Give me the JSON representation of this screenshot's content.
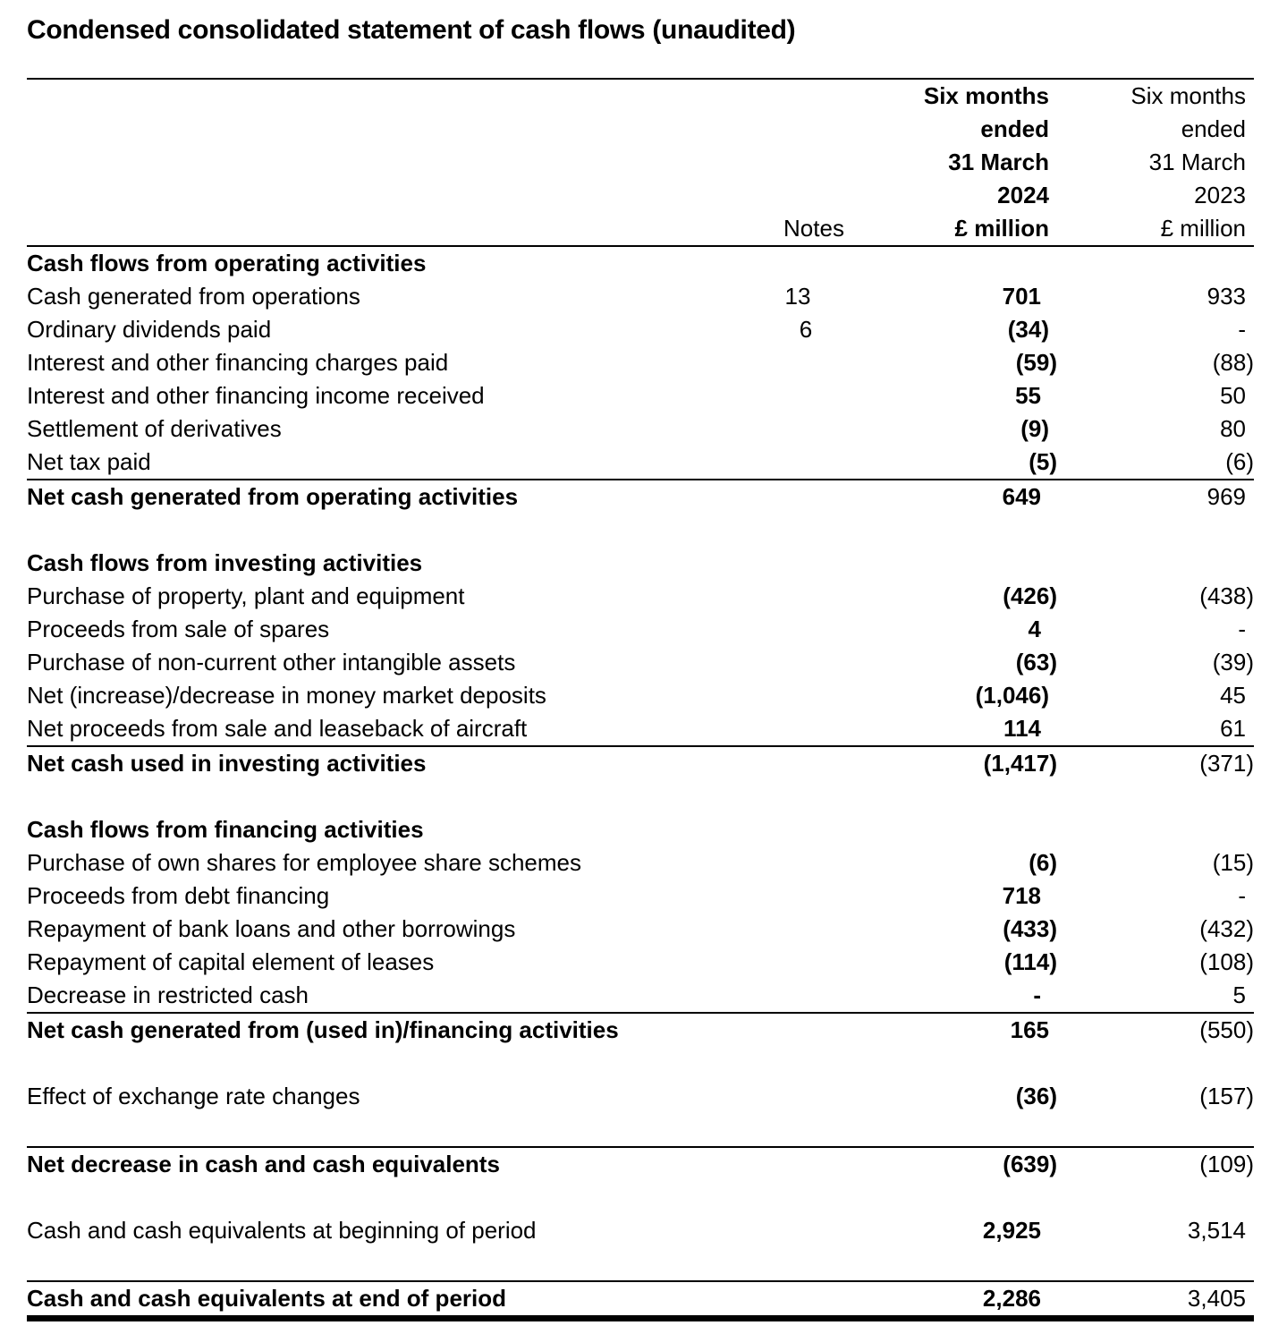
{
  "title": "Condensed consolidated statement of cash flows (unaudited)",
  "header": {
    "notes_label": "Notes",
    "col_2024_lines": [
      "Six months",
      "ended",
      "31 March",
      "2024",
      "£ million"
    ],
    "col_2023_lines": [
      "Six months",
      "ended",
      "31 March",
      "2023",
      "£ million"
    ]
  },
  "rows": [
    {
      "type": "section",
      "label": "Cash flows from operating activities"
    },
    {
      "type": "item",
      "label": "Cash generated from operations",
      "note": "13",
      "v2024": "701",
      "v2023": "933"
    },
    {
      "type": "item",
      "label": "Ordinary dividends paid",
      "note": "6",
      "v2024": "(34)",
      "v2023": "-"
    },
    {
      "type": "item",
      "label": "Interest and other financing charges paid",
      "v2024": "(59)",
      "v2023": "(88)"
    },
    {
      "type": "item",
      "label": "Interest and other financing income received",
      "v2024": "55",
      "v2023": "50"
    },
    {
      "type": "item",
      "label": "Settlement of derivatives",
      "v2024": "(9)",
      "v2023": "80"
    },
    {
      "type": "item",
      "label": "Net tax paid",
      "v2024": "(5)",
      "v2023": "(6)"
    },
    {
      "type": "rule"
    },
    {
      "type": "total",
      "label": "Net cash generated from operating activities",
      "v2024": "649",
      "v2023": "969"
    },
    {
      "type": "spacer"
    },
    {
      "type": "section",
      "label": "Cash flows from investing activities"
    },
    {
      "type": "item",
      "label": "Purchase of property, plant and equipment",
      "v2024": "(426)",
      "v2023": "(438)"
    },
    {
      "type": "item",
      "label": "Proceeds from sale of spares",
      "v2024": "4",
      "v2023": "-"
    },
    {
      "type": "item",
      "label": "Purchase of non-current other intangible assets",
      "v2024": "(63)",
      "v2023": "(39)"
    },
    {
      "type": "item",
      "label": "Net (increase)/decrease in money market deposits",
      "v2024": "(1,046)",
      "v2023": "45"
    },
    {
      "type": "item",
      "label": "Net proceeds from sale and leaseback of aircraft",
      "v2024": "114",
      "v2023": "61"
    },
    {
      "type": "rule"
    },
    {
      "type": "total",
      "label": "Net cash used in investing activities",
      "v2024": "(1,417)",
      "v2023": "(371)"
    },
    {
      "type": "spacer"
    },
    {
      "type": "section",
      "label": "Cash flows from financing activities"
    },
    {
      "type": "item",
      "label": "Purchase of own shares for employee share schemes",
      "v2024": "(6)",
      "v2023": "(15)"
    },
    {
      "type": "item",
      "label": "Proceeds from debt financing",
      "v2024": "718",
      "v2023": "-"
    },
    {
      "type": "item",
      "label": "Repayment of bank loans and other borrowings",
      "v2024": "(433)",
      "v2023": "(432)"
    },
    {
      "type": "item",
      "label": "Repayment of capital element of leases",
      "v2024": "(114)",
      "v2023": "(108)"
    },
    {
      "type": "item",
      "label": "Decrease in restricted cash",
      "v2024": "-",
      "v2023": "5"
    },
    {
      "type": "rule"
    },
    {
      "type": "total",
      "label": "Net cash generated from (used in)/financing activities",
      "v2024": "165",
      "v2023": "(550)"
    },
    {
      "type": "spacer"
    },
    {
      "type": "item",
      "label": "Effect of exchange rate changes",
      "v2024": "(36)",
      "v2023": "(157)"
    },
    {
      "type": "spacer"
    },
    {
      "type": "rule"
    },
    {
      "type": "total",
      "label": "Net decrease in cash and cash equivalents",
      "v2024": "(639)",
      "v2023": "(109)"
    },
    {
      "type": "spacer"
    },
    {
      "type": "item",
      "label": "Cash and cash equivalents at beginning of period",
      "v2024": "2,925",
      "v2023": "3,514"
    },
    {
      "type": "spacer"
    },
    {
      "type": "rule"
    },
    {
      "type": "total",
      "label": "Cash and cash equivalents at end of period",
      "v2024": "2,286",
      "v2023": "3,405"
    },
    {
      "type": "rule-thick"
    }
  ]
}
